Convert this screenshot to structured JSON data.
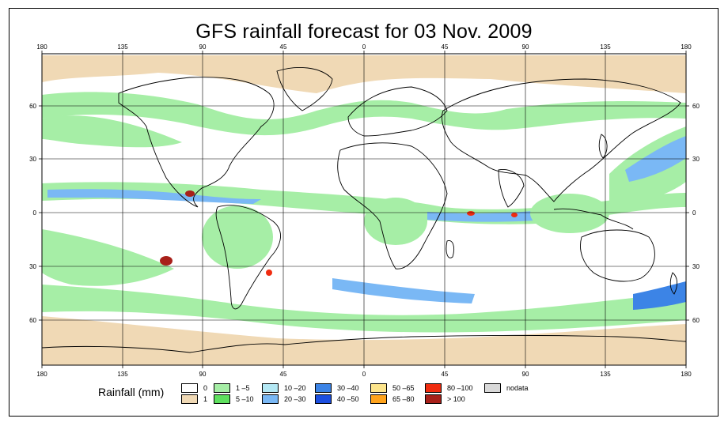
{
  "title": "GFS rainfall forecast for 03 Nov. 2009",
  "map": {
    "lon_ticks_top": [
      "180",
      "135",
      "90",
      "45",
      "0",
      "45",
      "90",
      "135",
      "180"
    ],
    "lon_ticks_bottom": [
      "180",
      "135",
      "90",
      "45",
      "0",
      "45",
      "90",
      "135",
      "180"
    ],
    "lat_ticks": [
      "60",
      "30",
      "0",
      "30",
      "60"
    ]
  },
  "legend": {
    "title": "Rainfall (mm)",
    "items": [
      {
        "label": "0",
        "color": "#ffffff"
      },
      {
        "label": "1",
        "color": "#f0d9b5"
      },
      {
        "label": "1 –5",
        "color": "#a6eea6"
      },
      {
        "label": "5 –10",
        "color": "#5fe05f"
      },
      {
        "label": "10 –20",
        "color": "#b4e8f4"
      },
      {
        "label": "20 –30",
        "color": "#7ab8f5"
      },
      {
        "label": "30 –40",
        "color": "#3c84e6"
      },
      {
        "label": "40 –50",
        "color": "#1c4fe0"
      },
      {
        "label": "50 –65",
        "color": "#fde58c"
      },
      {
        "label": "65 –80",
        "color": "#ffa31c"
      },
      {
        "label": "80 –100",
        "color": "#f02c10"
      },
      {
        "label": "> 100",
        "color": "#a8201a"
      },
      {
        "label": "nodata",
        "color": "#d9d9d9"
      }
    ]
  }
}
